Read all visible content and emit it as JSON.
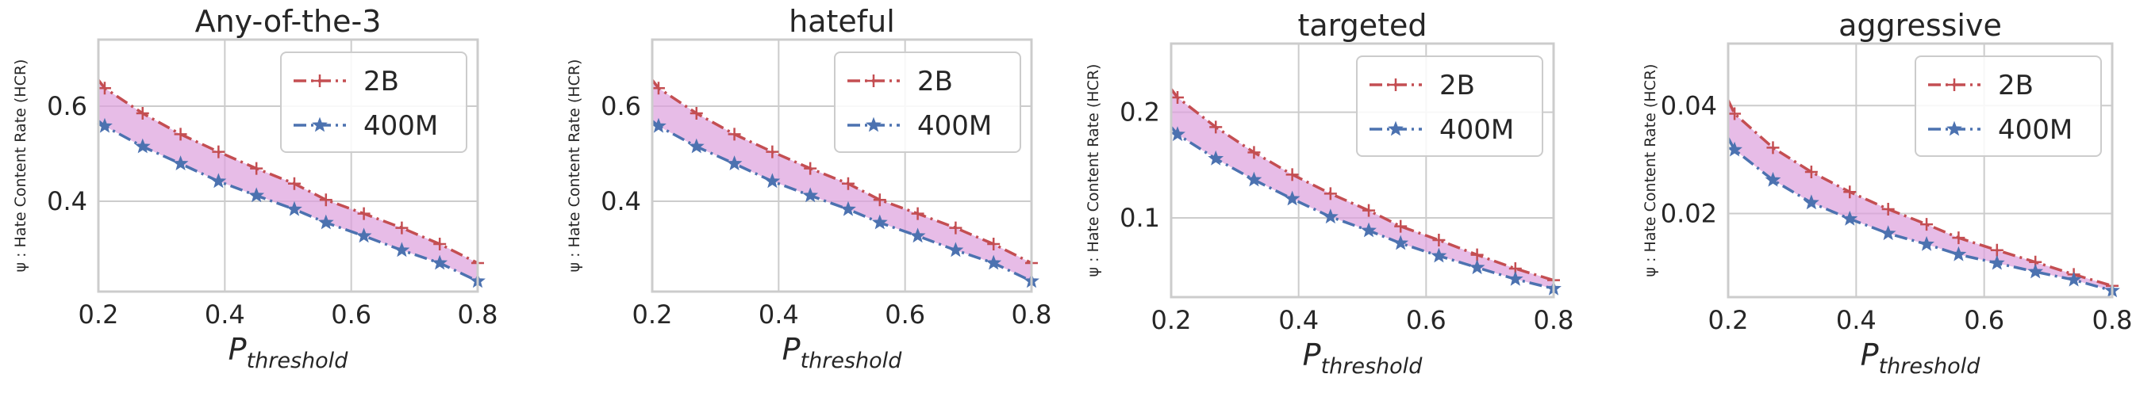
{
  "colors": {
    "series_2B": "#c44e52",
    "series_400M": "#4c72b0",
    "fill": "#dda0dd",
    "grid": "#cccccc",
    "frame": "#cccccc"
  },
  "chart_data": [
    {
      "type": "line",
      "title": "Any-of-the-3",
      "xlabel_main": "P",
      "xlabel_sub": "threshold",
      "ylabel": "ψ : Hate Content Rate (HCR)",
      "xlim": [
        0.2,
        0.8
      ],
      "ylim": [
        0.21,
        0.74
      ],
      "xticks": [
        0.2,
        0.4,
        0.6,
        0.8
      ],
      "xtick_labels": [
        "0.2",
        "0.4",
        "0.6",
        "0.8"
      ],
      "yticks": [
        0.4,
        0.6
      ],
      "ytick_labels": [
        "0.4",
        "0.6"
      ],
      "grid": true,
      "legend": "top-right",
      "fill_between": true,
      "x": [
        0.2,
        0.21,
        0.27,
        0.33,
        0.39,
        0.45,
        0.51,
        0.56,
        0.62,
        0.68,
        0.74,
        0.8
      ],
      "series": [
        {
          "name": "2B",
          "marker": "plus",
          "linestyle": "dashdot",
          "values": [
            0.655,
            0.638,
            0.585,
            0.541,
            0.504,
            0.469,
            0.437,
            0.403,
            0.374,
            0.344,
            0.31,
            0.27
          ]
        },
        {
          "name": "400M",
          "marker": "star",
          "linestyle": "dashdot",
          "values": [
            0.569,
            0.558,
            0.515,
            0.479,
            0.442,
            0.412,
            0.383,
            0.355,
            0.327,
            0.297,
            0.27,
            0.232
          ]
        }
      ]
    },
    {
      "type": "line",
      "title": "hateful",
      "xlabel_main": "P",
      "xlabel_sub": "threshold",
      "ylabel": "ψ : Hate Content Rate (HCR)",
      "xlim": [
        0.2,
        0.8
      ],
      "ylim": [
        0.21,
        0.74
      ],
      "xticks": [
        0.2,
        0.4,
        0.6,
        0.8
      ],
      "xtick_labels": [
        "0.2",
        "0.4",
        "0.6",
        "0.8"
      ],
      "yticks": [
        0.4,
        0.6
      ],
      "ytick_labels": [
        "0.4",
        "0.6"
      ],
      "grid": true,
      "legend": "top-right",
      "fill_between": true,
      "x": [
        0.2,
        0.21,
        0.27,
        0.33,
        0.39,
        0.45,
        0.51,
        0.56,
        0.62,
        0.68,
        0.74,
        0.8
      ],
      "series": [
        {
          "name": "2B",
          "marker": "plus",
          "linestyle": "dashdot",
          "values": [
            0.655,
            0.638,
            0.585,
            0.541,
            0.504,
            0.469,
            0.437,
            0.403,
            0.374,
            0.344,
            0.31,
            0.27
          ]
        },
        {
          "name": "400M",
          "marker": "star",
          "linestyle": "dashdot",
          "values": [
            0.569,
            0.558,
            0.515,
            0.479,
            0.442,
            0.412,
            0.383,
            0.355,
            0.327,
            0.297,
            0.27,
            0.232
          ]
        }
      ]
    },
    {
      "type": "line",
      "title": "targeted",
      "xlabel_main": "P",
      "xlabel_sub": "threshold",
      "ylabel": "ψ : Hate Content Rate (HCR)",
      "xlim": [
        0.2,
        0.8
      ],
      "ylim": [
        0.025,
        0.265
      ],
      "xticks": [
        0.2,
        0.4,
        0.6,
        0.8
      ],
      "xtick_labels": [
        "0.2",
        "0.4",
        "0.6",
        "0.8"
      ],
      "yticks": [
        0.1,
        0.2
      ],
      "ytick_labels": [
        "0.1",
        "0.2"
      ],
      "grid": true,
      "legend": "top-right",
      "fill_between": true,
      "x": [
        0.2,
        0.21,
        0.27,
        0.33,
        0.39,
        0.45,
        0.51,
        0.56,
        0.62,
        0.68,
        0.74,
        0.8
      ],
      "series": [
        {
          "name": "2B",
          "marker": "plus",
          "linestyle": "dashdot",
          "values": [
            0.222,
            0.214,
            0.186,
            0.162,
            0.141,
            0.123,
            0.107,
            0.092,
            0.079,
            0.065,
            0.052,
            0.041
          ]
        },
        {
          "name": "400M",
          "marker": "star",
          "linestyle": "dashdot",
          "values": [
            0.186,
            0.179,
            0.156,
            0.136,
            0.118,
            0.101,
            0.088,
            0.076,
            0.064,
            0.053,
            0.042,
            0.033
          ]
        }
      ]
    },
    {
      "type": "line",
      "title": "aggressive",
      "xlabel_main": "P",
      "xlabel_sub": "threshold",
      "ylabel": "ψ : Hate Content Rate (HCR)",
      "xlim": [
        0.2,
        0.8
      ],
      "ylim": [
        0.0045,
        0.0515
      ],
      "xticks": [
        0.2,
        0.4,
        0.6,
        0.8
      ],
      "xtick_labels": [
        "0.2",
        "0.4",
        "0.6",
        "0.8"
      ],
      "yticks": [
        0.02,
        0.04
      ],
      "ytick_labels": [
        "0.02",
        "0.04"
      ],
      "grid": true,
      "legend": "top-right",
      "fill_between": true,
      "x": [
        0.2,
        0.21,
        0.27,
        0.33,
        0.39,
        0.45,
        0.51,
        0.56,
        0.62,
        0.68,
        0.74,
        0.8
      ],
      "series": [
        {
          "name": "2B",
          "marker": "plus",
          "linestyle": "dashdot",
          "values": [
            0.041,
            0.0385,
            0.0322,
            0.0277,
            0.024,
            0.0208,
            0.018,
            0.0155,
            0.0132,
            0.011,
            0.0087,
            0.0066
          ]
        },
        {
          "name": "400M",
          "marker": "star",
          "linestyle": "dashdot",
          "values": [
            0.034,
            0.0318,
            0.0262,
            0.022,
            0.019,
            0.0163,
            0.0143,
            0.0124,
            0.0108,
            0.0092,
            0.0077,
            0.0057
          ]
        }
      ]
    }
  ]
}
